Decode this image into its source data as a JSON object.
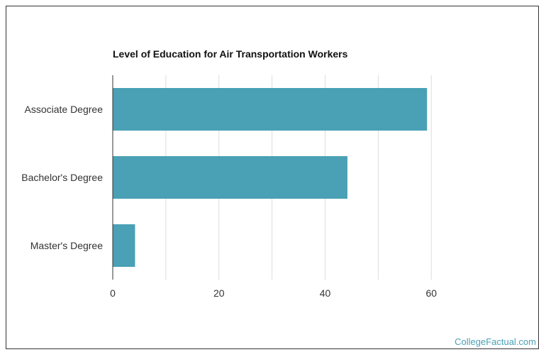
{
  "chart_data": {
    "type": "bar",
    "orientation": "horizontal",
    "title": "Level of Education for Air Transportation Workers",
    "categories": [
      "Associate Degree",
      "Bachelor's Degree",
      "Master's Degree"
    ],
    "values": [
      59.2,
      44.2,
      4.2
    ],
    "xlim": [
      0,
      80
    ],
    "xticks": [
      0,
      20,
      40,
      60
    ],
    "xlabel": "",
    "ylabel": "",
    "grid": true,
    "bar_color": "#4aa0b5"
  },
  "watermark": "CollegeFactual.com"
}
